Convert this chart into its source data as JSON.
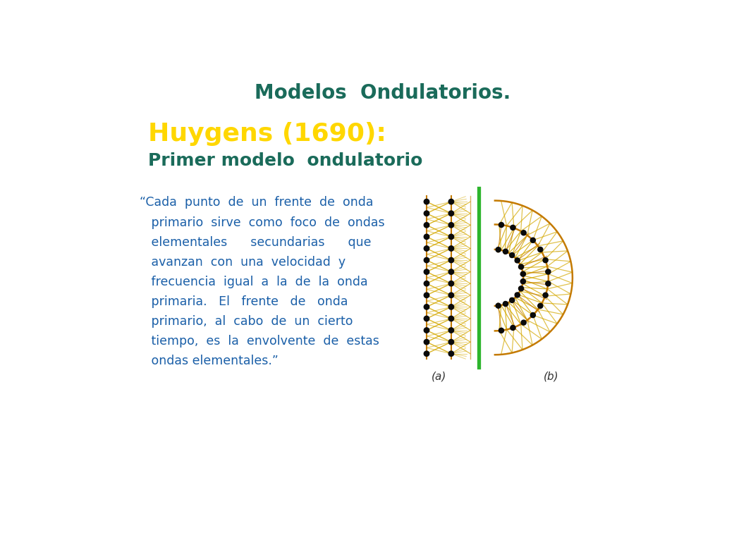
{
  "bg_color": "#ffffff",
  "title": "Modelos  Ondulatorios.",
  "title_color": "#1a6b5a",
  "title_fontsize": 20,
  "subtitle1": "Huygens (1690):",
  "subtitle1_color": "#ffd700",
  "subtitle1_fontsize": 26,
  "subtitle2": "Primer modelo  ondulatorio",
  "subtitle2_color": "#1a6b5a",
  "subtitle2_fontsize": 18,
  "body_color": "#1a5fa8",
  "body_fontsize": 12.5,
  "label_a": "(a)",
  "label_b": "(b)",
  "label_color": "#333333",
  "label_fontsize": 11,
  "wave_dark": "#c47a00",
  "wave_light": "#d4a800",
  "dot_color": "#0a0a0a",
  "green_line_color": "#2db52d",
  "fig_width": 10.58,
  "fig_height": 7.93
}
